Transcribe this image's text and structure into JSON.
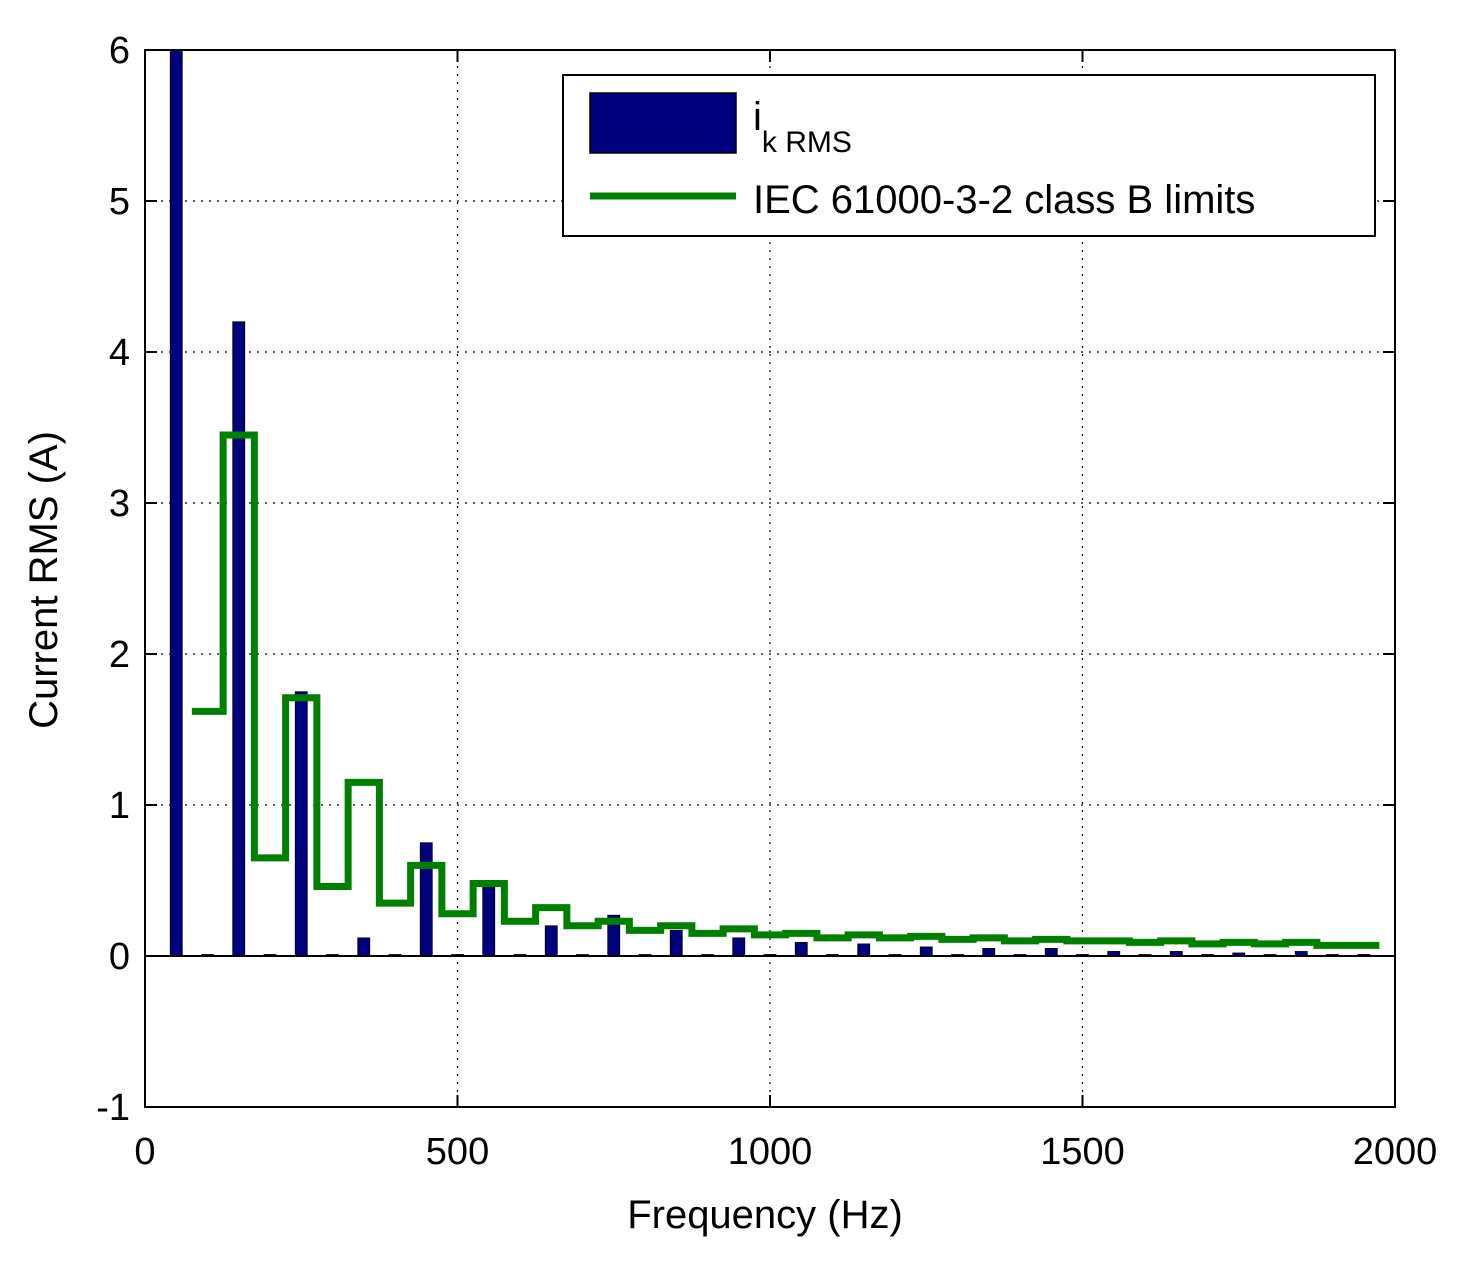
{
  "chart_data": {
    "type": "bar",
    "xlabel": "Frequency (Hz)",
    "ylabel": "Current RMS (A)",
    "xlim": [
      0,
      2000
    ],
    "ylim": [
      -1,
      6
    ],
    "x_ticks": [
      "0",
      "500",
      "1000",
      "1500",
      "2000"
    ],
    "y_ticks": [
      "-1",
      "0",
      "1",
      "2",
      "3",
      "4",
      "5",
      "6"
    ],
    "grid": true,
    "legend_position": "top-right",
    "legend": {
      "bars_main": "i",
      "bars_sub": "k RMS",
      "limits": "IEC 61000-3-2 class B limits"
    },
    "colors": {
      "bars": "#00007f",
      "limits": "#008000"
    },
    "series": [
      {
        "kind": "bar",
        "x": [
          50,
          100,
          150,
          200,
          250,
          300,
          350,
          400,
          450,
          500,
          550,
          600,
          650,
          700,
          750,
          800,
          850,
          900,
          950,
          1000,
          1050,
          1100,
          1150,
          1200,
          1250,
          1300,
          1350,
          1400,
          1450,
          1500,
          1550,
          1600,
          1650,
          1700,
          1750,
          1800,
          1850,
          1900,
          1950
        ],
        "values": [
          6.0,
          0.0,
          4.2,
          0.01,
          1.75,
          0.0,
          0.12,
          0.0,
          0.75,
          0.0,
          0.5,
          0.0,
          0.2,
          0.0,
          0.27,
          0.0,
          0.17,
          0.0,
          0.12,
          0.0,
          0.09,
          0.0,
          0.08,
          0.0,
          0.06,
          0.0,
          0.05,
          0.0,
          0.05,
          0.0,
          0.03,
          0.0,
          0.03,
          0.0,
          0.02,
          0.0,
          0.03,
          0.0,
          0.01
        ]
      },
      {
        "kind": "step",
        "x": [
          100,
          150,
          200,
          250,
          300,
          350,
          400,
          450,
          500,
          550,
          600,
          650,
          700,
          750,
          800,
          850,
          900,
          950,
          1000,
          1050,
          1100,
          1150,
          1200,
          1250,
          1300,
          1350,
          1400,
          1450,
          1500,
          1550,
          1600,
          1650,
          1700,
          1750,
          1800,
          1850,
          1900,
          1950
        ],
        "values": [
          1.62,
          3.45,
          0.65,
          1.71,
          0.46,
          1.15,
          0.35,
          0.6,
          0.28,
          0.48,
          0.23,
          0.32,
          0.2,
          0.23,
          0.17,
          0.2,
          0.15,
          0.18,
          0.14,
          0.15,
          0.12,
          0.14,
          0.12,
          0.13,
          0.11,
          0.12,
          0.1,
          0.11,
          0.1,
          0.1,
          0.09,
          0.1,
          0.08,
          0.09,
          0.08,
          0.09,
          0.07,
          0.07
        ]
      }
    ]
  }
}
